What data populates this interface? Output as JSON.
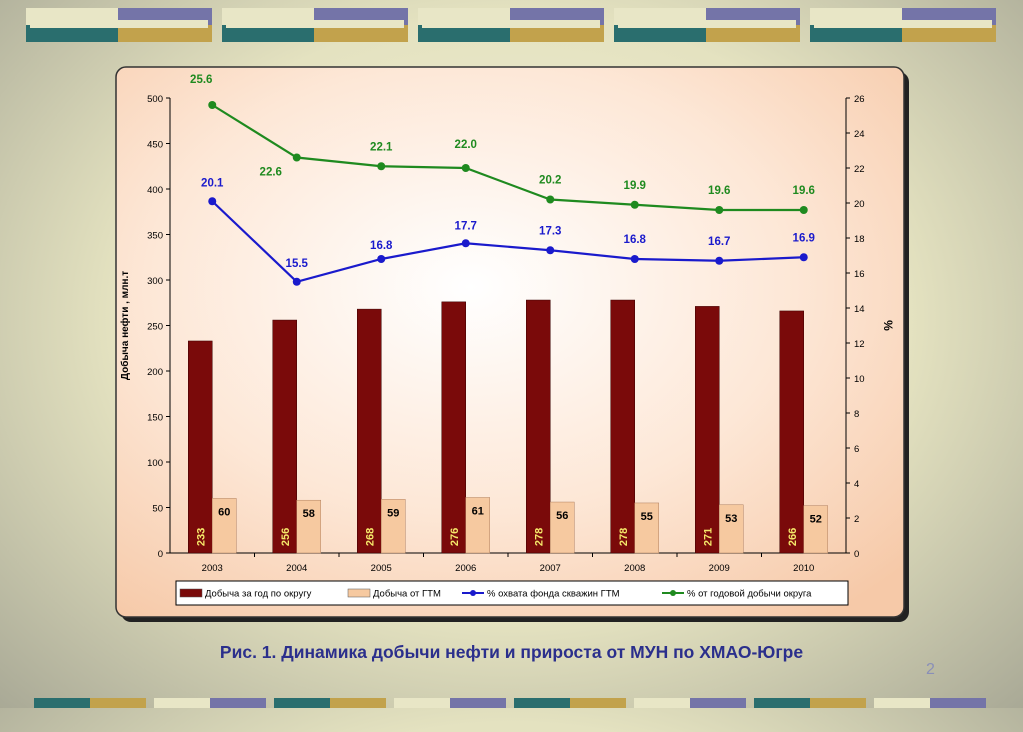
{
  "caption": "Рис. 1. Динамика добычи нефти и прироста от МУН по ХМАО-Югре",
  "page_number": "2",
  "colors": {
    "bar_total": "#7a0a0a",
    "bar_gtm": "#f6c9a0",
    "line_coverage": "#1a1acc",
    "line_share": "#1f8a1f",
    "inner_bar_label": "#f5e86a",
    "deco_teal": "#2a6e6e",
    "deco_purple": "#7474a8",
    "deco_gold": "#c2a24c",
    "deco_cream": "#e8e6c6"
  },
  "chart_data": {
    "type": "bar",
    "categories": [
      "2003",
      "2004",
      "2005",
      "2006",
      "2007",
      "2008",
      "2009",
      "2010"
    ],
    "series": [
      {
        "name": "Добыча за год по округу",
        "kind": "bar",
        "axis": "left",
        "values": [
          233,
          256,
          268,
          276,
          278,
          278,
          271,
          266
        ]
      },
      {
        "name": "Добыча от ГТМ",
        "kind": "bar",
        "axis": "left",
        "values": [
          60,
          58,
          59,
          61,
          56,
          55,
          53,
          52
        ]
      },
      {
        "name": "% охвата фонда скважин ГТМ",
        "kind": "line",
        "axis": "right",
        "values": [
          20.1,
          15.5,
          16.8,
          17.7,
          17.3,
          16.8,
          16.7,
          16.9
        ]
      },
      {
        "name": "% от годовой добычи округа",
        "kind": "line",
        "axis": "right",
        "values": [
          25.6,
          22.6,
          22.1,
          22.0,
          20.2,
          19.9,
          19.6,
          19.6
        ]
      }
    ],
    "value_labels": {
      "total": [
        "233",
        "256",
        "268",
        "276",
        "278",
        "278",
        "271",
        "266"
      ],
      "gtm": [
        "60",
        "58",
        "59",
        "61",
        "56",
        "55",
        "53",
        "52"
      ],
      "coverage": [
        "20.1",
        "15.5",
        "16.8",
        "17.7",
        "17.3",
        "16.8",
        "16.7",
        "16.9"
      ],
      "share": [
        "25.6",
        "22.6",
        "22.1",
        "22.0",
        "20.2",
        "19.9",
        "19.6",
        "19.6"
      ]
    },
    "ylabel": "Добыча нефти , млн.т",
    "y2label": "%",
    "ylim": [
      0,
      500
    ],
    "y2lim": [
      0,
      26
    ],
    "yticks": [
      "0",
      "50",
      "100",
      "150",
      "200",
      "250",
      "300",
      "350",
      "400",
      "450",
      "500"
    ],
    "y2ticks": [
      "0",
      "2",
      "4",
      "6",
      "8",
      "10",
      "12",
      "14",
      "16",
      "18",
      "20",
      "22",
      "24",
      "26"
    ],
    "legend_position": "bottom",
    "grid": false
  }
}
